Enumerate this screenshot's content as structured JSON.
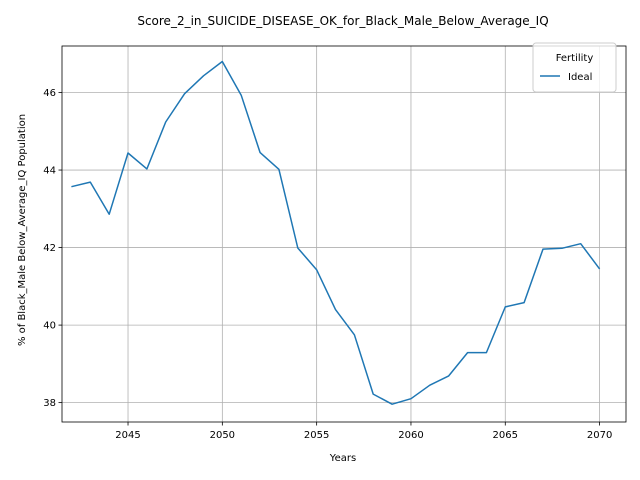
{
  "chart_data": {
    "type": "line",
    "title": "Score_2_in_SUICIDE_DISEASE_OK_for_Black_Male_Below_Average_IQ",
    "xlabel": "Years",
    "ylabel": "% of Black_Male Below_Average_IQ Population",
    "xlim": [
      2041.5,
      2071.4
    ],
    "ylim": [
      37.5,
      47.2
    ],
    "x_ticks": [
      2045,
      2050,
      2055,
      2060,
      2065,
      2070
    ],
    "y_ticks": [
      38,
      40,
      42,
      44,
      46
    ],
    "grid": true,
    "legend": {
      "title": "Fertility",
      "placement": "top-right"
    },
    "series": [
      {
        "name": "Ideal",
        "color": "#1f77b4",
        "x": [
          2042,
          2043,
          2044,
          2045,
          2046,
          2047,
          2048,
          2049,
          2050,
          2051,
          2052,
          2053,
          2054,
          2055,
          2056,
          2057,
          2058,
          2059,
          2060,
          2061,
          2062,
          2063,
          2064,
          2065,
          2066,
          2067,
          2068,
          2069,
          2070
        ],
        "values": [
          43.57,
          43.69,
          42.86,
          44.44,
          44.03,
          45.24,
          45.97,
          46.43,
          46.8,
          45.93,
          44.45,
          44.02,
          41.99,
          41.43,
          40.4,
          39.75,
          38.22,
          37.96,
          38.1,
          38.45,
          38.69,
          39.29,
          39.29,
          40.47,
          40.58,
          41.96,
          41.98,
          42.1,
          41.45
        ]
      }
    ]
  }
}
